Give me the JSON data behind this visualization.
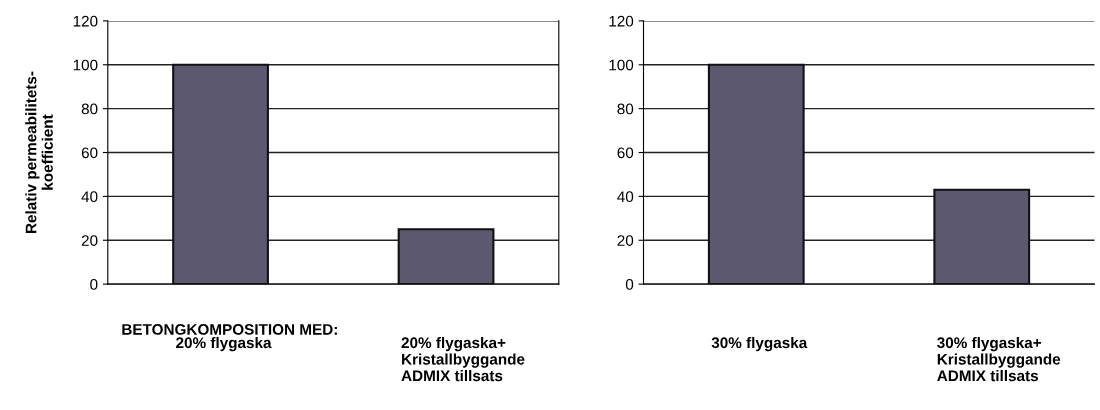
{
  "chart_data": [
    {
      "type": "bar",
      "ylabel": "Relativ permeabilitets-\nkoefficient",
      "categories": [
        "20% flygaska",
        "20% flygaska+\nKristallbyggande\nADMIX tillsats"
      ],
      "values": [
        100,
        25
      ],
      "color": "#5b5870",
      "ylim": [
        0,
        120
      ],
      "yticks": [
        0,
        20,
        40,
        60,
        80,
        100,
        120
      ],
      "grid": "y",
      "annotations": [
        "BETONGKOMPOSITION MED:"
      ]
    },
    {
      "type": "bar",
      "categories": [
        "30% flygaska",
        "30% flygaska+\nKristallbyggande\nADMIX tillsats"
      ],
      "values": [
        100,
        43
      ],
      "color": "#5b5870",
      "ylim": [
        0,
        120
      ],
      "yticks": [
        0,
        20,
        40,
        60,
        80,
        100,
        120
      ],
      "grid": "y"
    }
  ]
}
